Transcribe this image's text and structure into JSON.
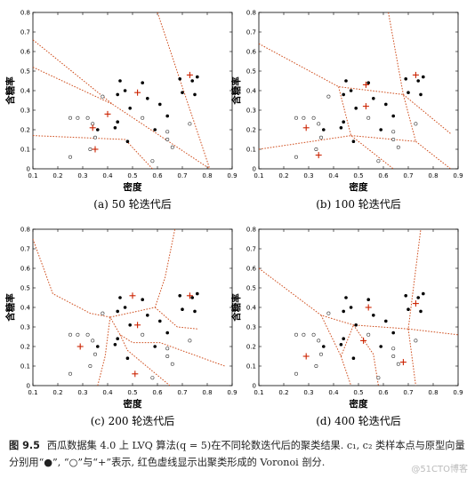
{
  "chart_data": [
    {
      "type": "scatter",
      "subtitle": "(a) 50 轮迭代后",
      "xlabel": "密度",
      "ylabel": "含糖率",
      "xlim": [
        0.1,
        0.9
      ],
      "ylim": [
        0,
        0.8
      ],
      "xticks": [
        "0.1",
        "0.2",
        "0.3",
        "0.4",
        "0.5",
        "0.6",
        "0.7",
        "0.8",
        "0.9"
      ],
      "yticks": [
        "0",
        "0.1",
        "0.2",
        "0.3",
        "0.4",
        "0.5",
        "0.6",
        "0.7",
        "0.8"
      ],
      "prototypes": [
        [
          0.35,
          0.1
        ],
        [
          0.34,
          0.21
        ],
        [
          0.4,
          0.28
        ],
        [
          0.52,
          0.39
        ],
        [
          0.73,
          0.48
        ]
      ],
      "boundaries": [
        [
          [
            0.1,
            0.66
          ],
          [
            0.42,
            0.33
          ],
          [
            0.81,
            0.0
          ]
        ],
        [
          [
            0.1,
            0.52
          ],
          [
            0.42,
            0.33
          ]
        ],
        [
          [
            0.1,
            0.17
          ],
          [
            0.47,
            0.15
          ],
          [
            0.58,
            0.0
          ]
        ],
        [
          [
            0.6,
            0.8
          ],
          [
            0.81,
            0.0
          ]
        ]
      ]
    },
    {
      "type": "scatter",
      "subtitle": "(b) 100 轮迭代后",
      "xlabel": "密度",
      "ylabel": "含糖率",
      "xlim": [
        0.1,
        0.9
      ],
      "ylim": [
        0,
        0.8
      ],
      "xticks": [
        "0.1",
        "0.2",
        "0.3",
        "0.4",
        "0.5",
        "0.6",
        "0.7",
        "0.8",
        "0.9"
      ],
      "yticks": [
        "0",
        "0.1",
        "0.2",
        "0.3",
        "0.4",
        "0.5",
        "0.6",
        "0.7",
        "0.8"
      ],
      "prototypes": [
        [
          0.34,
          0.07
        ],
        [
          0.29,
          0.21
        ],
        [
          0.53,
          0.32
        ],
        [
          0.53,
          0.43
        ],
        [
          0.73,
          0.48
        ]
      ],
      "boundaries": [
        [
          [
            0.1,
            0.64
          ],
          [
            0.42,
            0.42
          ],
          [
            0.68,
            0.38
          ],
          [
            0.73,
            0.14
          ]
        ],
        [
          [
            0.42,
            0.42
          ],
          [
            0.47,
            0.17
          ]
        ],
        [
          [
            0.1,
            0.1
          ],
          [
            0.47,
            0.17
          ],
          [
            0.64,
            0.0
          ]
        ],
        [
          [
            0.47,
            0.17
          ],
          [
            0.73,
            0.14
          ]
        ],
        [
          [
            0.73,
            0.14
          ],
          [
            0.87,
            0.0
          ]
        ],
        [
          [
            0.68,
            0.38
          ],
          [
            0.87,
            0.18
          ]
        ],
        [
          [
            0.62,
            0.8
          ],
          [
            0.68,
            0.38
          ]
        ]
      ]
    },
    {
      "type": "scatter",
      "subtitle": "(c) 200 轮迭代后",
      "xlabel": "密度",
      "ylabel": "含糖率",
      "xlim": [
        0.1,
        0.9
      ],
      "ylim": [
        0,
        0.8
      ],
      "xticks": [
        "0.1",
        "0.2",
        "0.3",
        "0.4",
        "0.5",
        "0.6",
        "0.7",
        "0.8",
        "0.9"
      ],
      "yticks": [
        "0",
        "0.1",
        "0.2",
        "0.3",
        "0.4",
        "0.5",
        "0.6",
        "0.7",
        "0.8"
      ],
      "prototypes": [
        [
          0.29,
          0.2
        ],
        [
          0.51,
          0.06
        ],
        [
          0.52,
          0.31
        ],
        [
          0.5,
          0.46
        ],
        [
          0.73,
          0.46
        ]
      ],
      "boundaries": [
        [
          [
            0.1,
            0.75
          ],
          [
            0.18,
            0.47
          ],
          [
            0.33,
            0.37
          ],
          [
            0.41,
            0.35
          ],
          [
            0.45,
            0.26
          ],
          [
            0.5,
            0.22
          ],
          [
            0.61,
            0.22
          ],
          [
            0.87,
            0.1
          ]
        ],
        [
          [
            0.41,
            0.35
          ],
          [
            0.59,
            0.4
          ],
          [
            0.63,
            0.55
          ],
          [
            0.67,
            0.8
          ]
        ],
        [
          [
            0.59,
            0.4
          ],
          [
            0.68,
            0.3
          ],
          [
            0.76,
            0.29
          ]
        ],
        [
          [
            0.41,
            0.35
          ],
          [
            0.39,
            0.15
          ],
          [
            0.36,
            0.0
          ]
        ],
        [
          [
            0.45,
            0.26
          ],
          [
            0.48,
            0.18
          ],
          [
            0.65,
            0.0
          ]
        ]
      ]
    },
    {
      "type": "scatter",
      "subtitle": "(d) 400 轮迭代后",
      "xlabel": "密度",
      "ylabel": "含糖率",
      "xlim": [
        0.1,
        0.9
      ],
      "ylim": [
        0,
        0.8
      ],
      "xticks": [
        "0.1",
        "0.2",
        "0.3",
        "0.4",
        "0.5",
        "0.6",
        "0.7",
        "0.8",
        "0.9"
      ],
      "yticks": [
        "0",
        "0.1",
        "0.2",
        "0.3",
        "0.4",
        "0.5",
        "0.6",
        "0.7",
        "0.8"
      ],
      "prototypes": [
        [
          0.29,
          0.15
        ],
        [
          0.52,
          0.23
        ],
        [
          0.54,
          0.4
        ],
        [
          0.68,
          0.12
        ],
        [
          0.73,
          0.42
        ]
      ],
      "boundaries": [
        [
          [
            0.1,
            0.6
          ],
          [
            0.35,
            0.36
          ],
          [
            0.48,
            0.31
          ],
          [
            0.59,
            0.3
          ],
          [
            0.7,
            0.29
          ],
          [
            0.75,
            0.8
          ]
        ],
        [
          [
            0.35,
            0.36
          ],
          [
            0.43,
            0.15
          ],
          [
            0.47,
            0.0
          ]
        ],
        [
          [
            0.43,
            0.15
          ],
          [
            0.48,
            0.31
          ]
        ],
        [
          [
            0.48,
            0.31
          ],
          [
            0.56,
            0.16
          ],
          [
            0.58,
            0.0
          ]
        ],
        [
          [
            0.7,
            0.29
          ],
          [
            0.9,
            0.26
          ]
        ],
        [
          [
            0.7,
            0.29
          ],
          [
            0.73,
            0.0
          ]
        ]
      ]
    }
  ],
  "points": {
    "filled": [
      [
        0.45,
        0.45
      ],
      [
        0.47,
        0.4
      ],
      [
        0.44,
        0.38
      ],
      [
        0.49,
        0.31
      ],
      [
        0.44,
        0.24
      ],
      [
        0.43,
        0.21
      ],
      [
        0.48,
        0.14
      ],
      [
        0.54,
        0.44
      ],
      [
        0.56,
        0.36
      ],
      [
        0.61,
        0.33
      ],
      [
        0.64,
        0.27
      ],
      [
        0.59,
        0.2
      ],
      [
        0.69,
        0.46
      ],
      [
        0.7,
        0.39
      ],
      [
        0.74,
        0.45
      ],
      [
        0.75,
        0.38
      ],
      [
        0.76,
        0.47
      ],
      [
        0.36,
        0.2
      ]
    ],
    "hollow": [
      [
        0.25,
        0.26
      ],
      [
        0.28,
        0.26
      ],
      [
        0.32,
        0.26
      ],
      [
        0.34,
        0.23
      ],
      [
        0.35,
        0.16
      ],
      [
        0.33,
        0.1
      ],
      [
        0.25,
        0.06
      ],
      [
        0.38,
        0.37
      ],
      [
        0.58,
        0.04
      ],
      [
        0.64,
        0.19
      ],
      [
        0.66,
        0.11
      ],
      [
        0.73,
        0.23
      ],
      [
        0.54,
        0.26
      ],
      [
        0.64,
        0.15
      ]
    ]
  },
  "caption": {
    "number": "图 9.5",
    "text": "西瓜数据集 4.0 上 LVQ 算法(q = 5)在不同轮数迭代后的聚类结果. c₁, c₂ 类样本点与原型向量分别用“●”, “○”与“+”表示, 红色虚线显示出聚类形成的 Voronoi 剖分."
  },
  "watermark": "@51CTO博客",
  "colors": {
    "prototype": "#cc2200",
    "boundary": "#d05020",
    "axis": "#000000"
  }
}
